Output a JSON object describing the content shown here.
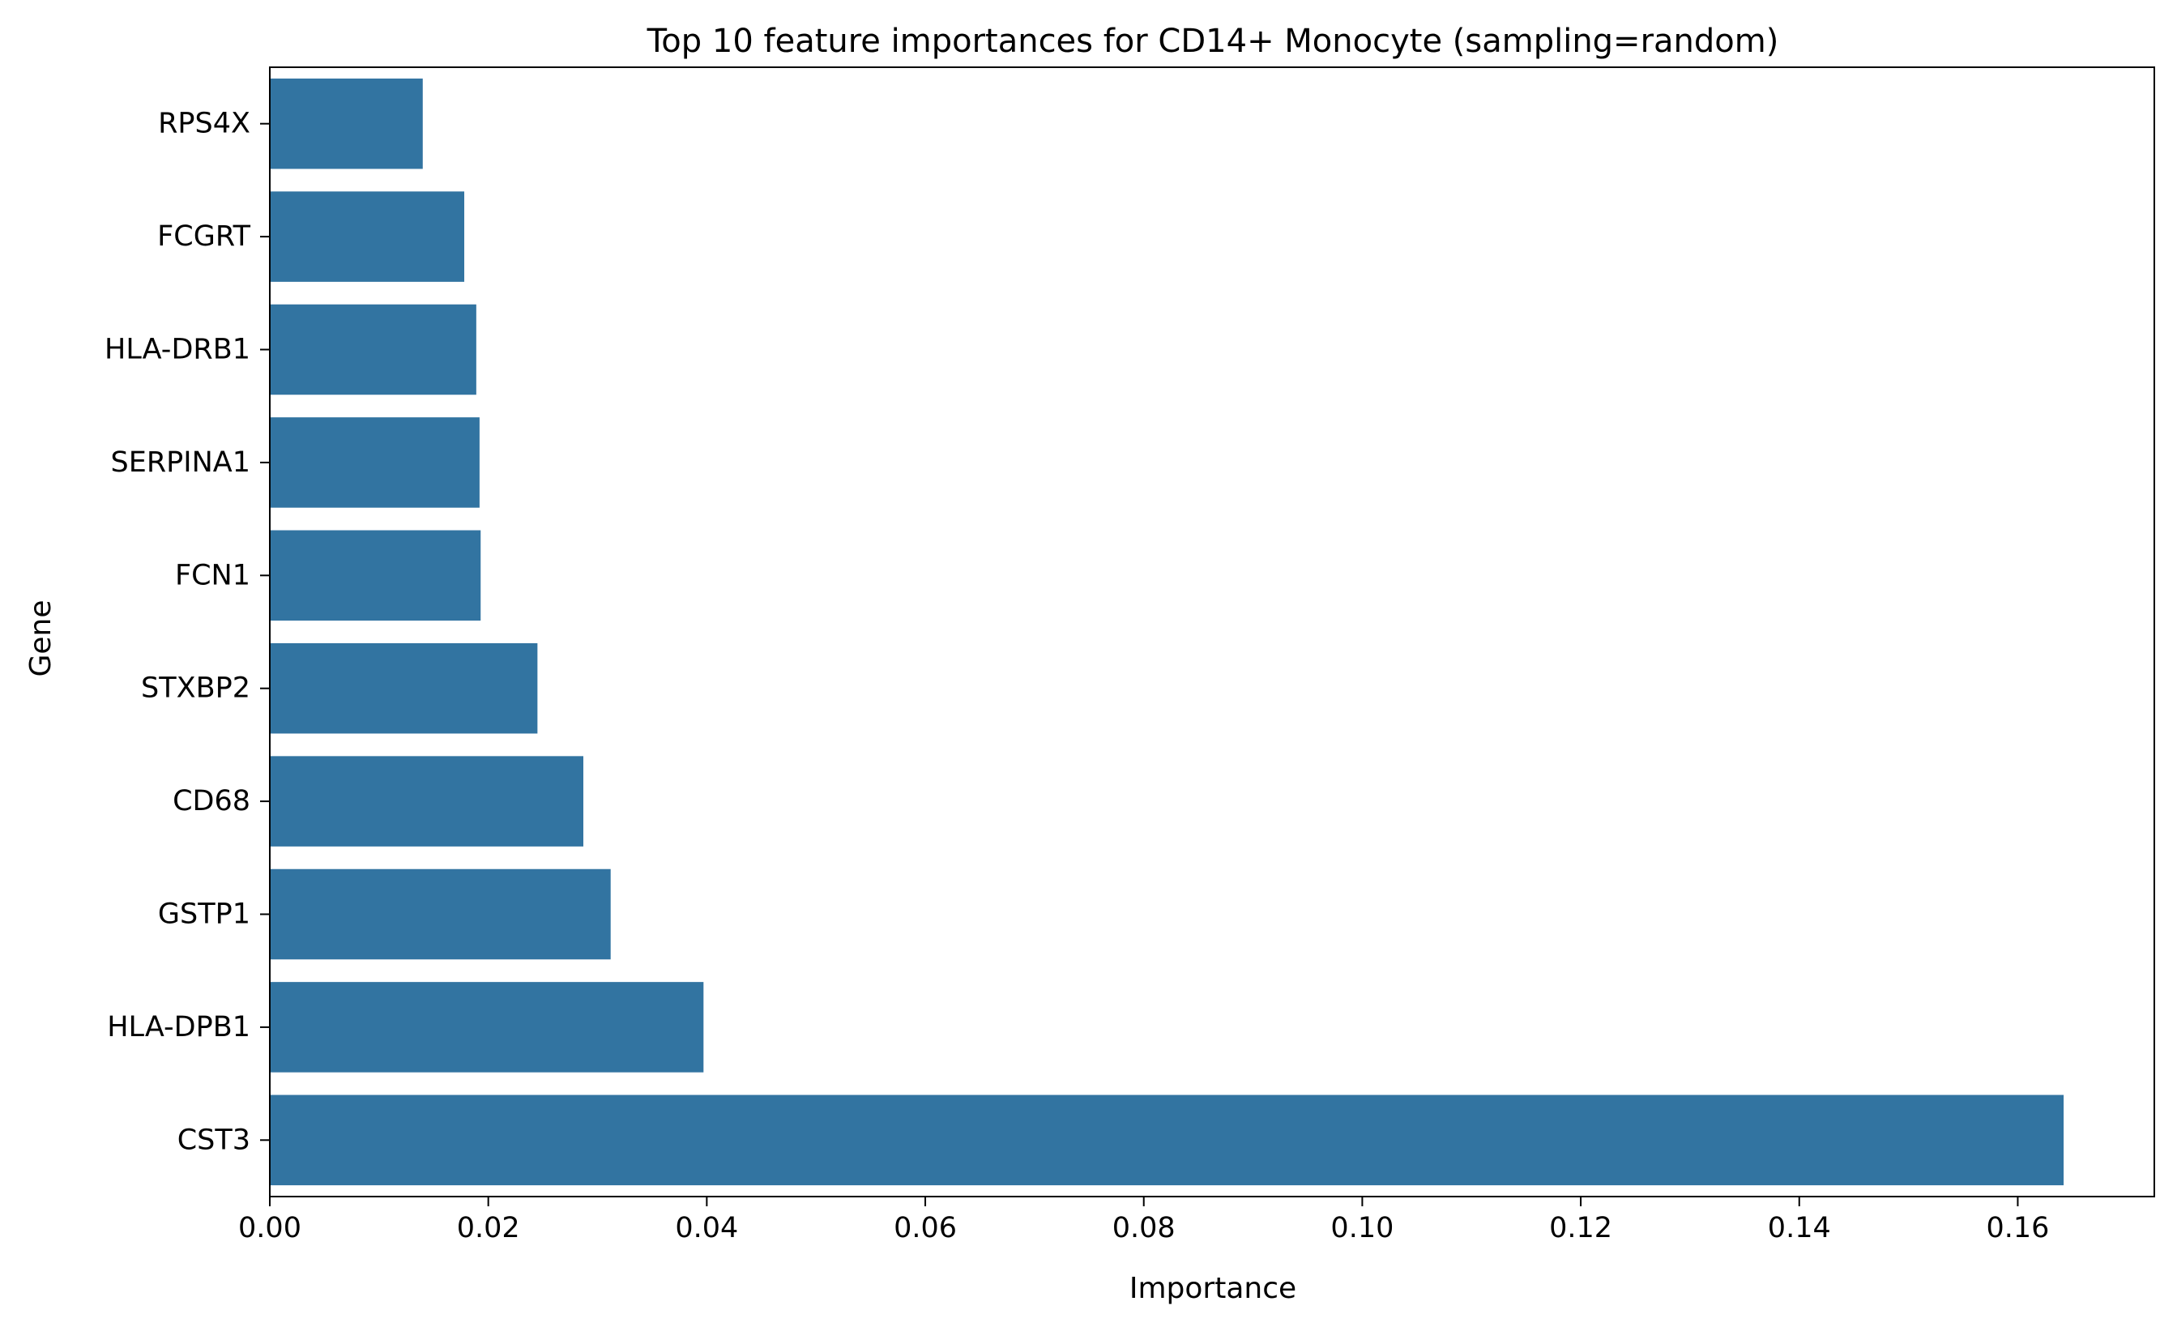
{
  "chart_data": {
    "type": "bar",
    "orientation": "horizontal",
    "title": "Top 10 feature importances for CD14+ Monocyte (sampling=random)",
    "xlabel": "Importance",
    "ylabel": "Gene",
    "categories": [
      "RPS4X",
      "FCGRT",
      "HLA-DRB1",
      "SERPINA1",
      "FCN1",
      "STXBP2",
      "CD68",
      "GSTP1",
      "HLA-DPB1",
      "CST3"
    ],
    "values": [
      0.014,
      0.0178,
      0.0189,
      0.0192,
      0.0193,
      0.0245,
      0.0287,
      0.0312,
      0.0397,
      0.1642
    ],
    "xlim": [
      0,
      0.1725
    ],
    "xticks": [
      0.0,
      0.02,
      0.04,
      0.06,
      0.08,
      0.1,
      0.12,
      0.14,
      0.16
    ],
    "xtick_labels": [
      "0.00",
      "0.02",
      "0.04",
      "0.06",
      "0.08",
      "0.10",
      "0.12",
      "0.14",
      "0.16"
    ],
    "bar_color": "#3274a1",
    "grid": false,
    "legend": "none"
  }
}
